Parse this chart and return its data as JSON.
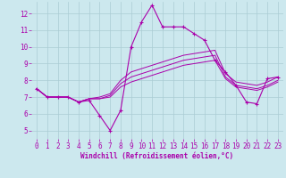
{
  "xlabel": "Windchill (Refroidissement éolien,°C)",
  "background_color": "#cce8ee",
  "grid_color": "#aaccd4",
  "line_color": "#aa00aa",
  "xlim": [
    -0.5,
    23.5
  ],
  "ylim": [
    4.5,
    12.7
  ],
  "xticks": [
    0,
    1,
    2,
    3,
    4,
    5,
    6,
    7,
    8,
    9,
    10,
    11,
    12,
    13,
    14,
    15,
    16,
    17,
    18,
    19,
    20,
    21,
    22,
    23
  ],
  "yticks": [
    5,
    6,
    7,
    8,
    9,
    10,
    11,
    12
  ],
  "lines": [
    [
      7.5,
      7.0,
      7.0,
      7.0,
      6.7,
      6.8,
      5.9,
      5.0,
      6.2,
      10.0,
      11.5,
      12.5,
      11.2,
      11.2,
      11.2,
      10.8,
      10.4,
      9.2,
      8.5,
      7.7,
      6.7,
      6.6,
      8.1,
      8.2
    ],
    [
      7.5,
      7.0,
      7.0,
      7.0,
      6.7,
      6.9,
      6.9,
      7.0,
      7.6,
      7.9,
      8.1,
      8.3,
      8.5,
      8.7,
      8.9,
      9.0,
      9.1,
      9.2,
      8.1,
      7.6,
      7.5,
      7.4,
      7.6,
      7.9
    ],
    [
      7.5,
      7.0,
      7.0,
      7.0,
      6.7,
      6.9,
      6.9,
      7.1,
      7.8,
      8.2,
      8.4,
      8.6,
      8.8,
      9.0,
      9.2,
      9.3,
      9.4,
      9.5,
      8.2,
      7.7,
      7.6,
      7.5,
      7.7,
      8.0
    ],
    [
      7.5,
      7.0,
      7.0,
      7.0,
      6.7,
      6.9,
      7.0,
      7.2,
      8.0,
      8.5,
      8.7,
      8.9,
      9.1,
      9.3,
      9.5,
      9.6,
      9.7,
      9.8,
      8.4,
      7.9,
      7.8,
      7.7,
      7.9,
      8.2
    ]
  ]
}
